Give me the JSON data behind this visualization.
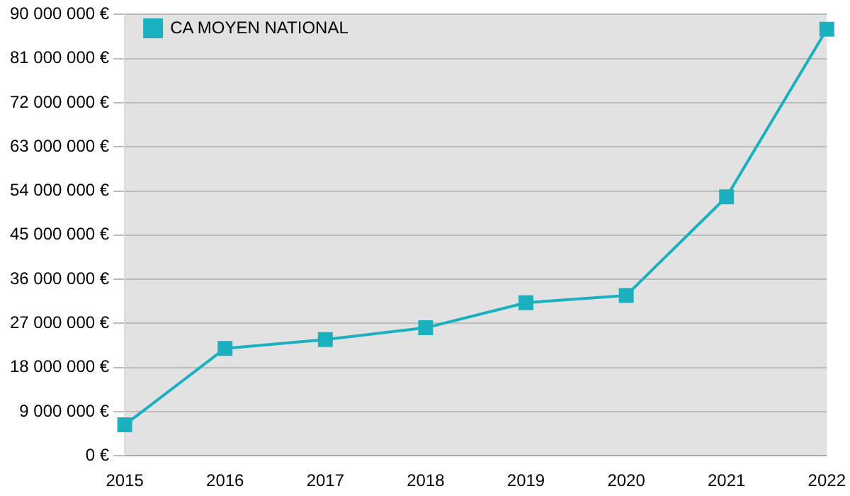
{
  "chart_data": {
    "type": "line",
    "categories": [
      "2015",
      "2016",
      "2017",
      "2018",
      "2019",
      "2020",
      "2021",
      "2022"
    ],
    "series": [
      {
        "name": "CA MOYEN NATIONAL",
        "color": "#1ab0c0",
        "values": [
          6300000,
          21900000,
          23700000,
          26100000,
          31200000,
          32700000,
          52800000,
          87000000
        ]
      }
    ],
    "ylim": [
      0,
      90000000
    ],
    "yticks": [
      {
        "value": 0,
        "label": "0 €"
      },
      {
        "value": 9000000,
        "label": "9 000 000 €"
      },
      {
        "value": 18000000,
        "label": "18 000 000 €"
      },
      {
        "value": 27000000,
        "label": "27 000 000 €"
      },
      {
        "value": 36000000,
        "label": "36 000 000 €"
      },
      {
        "value": 45000000,
        "label": "45 000 000 €"
      },
      {
        "value": 54000000,
        "label": "54 000 000 €"
      },
      {
        "value": 63000000,
        "label": "63 000 000 €"
      },
      {
        "value": 72000000,
        "label": "72 000 000 €"
      },
      {
        "value": 81000000,
        "label": "81 000 000 €"
      },
      {
        "value": 90000000,
        "label": "90 000 000 €"
      }
    ],
    "grid": "y",
    "legend": "top left",
    "marker": "square",
    "line_style": "solid"
  }
}
